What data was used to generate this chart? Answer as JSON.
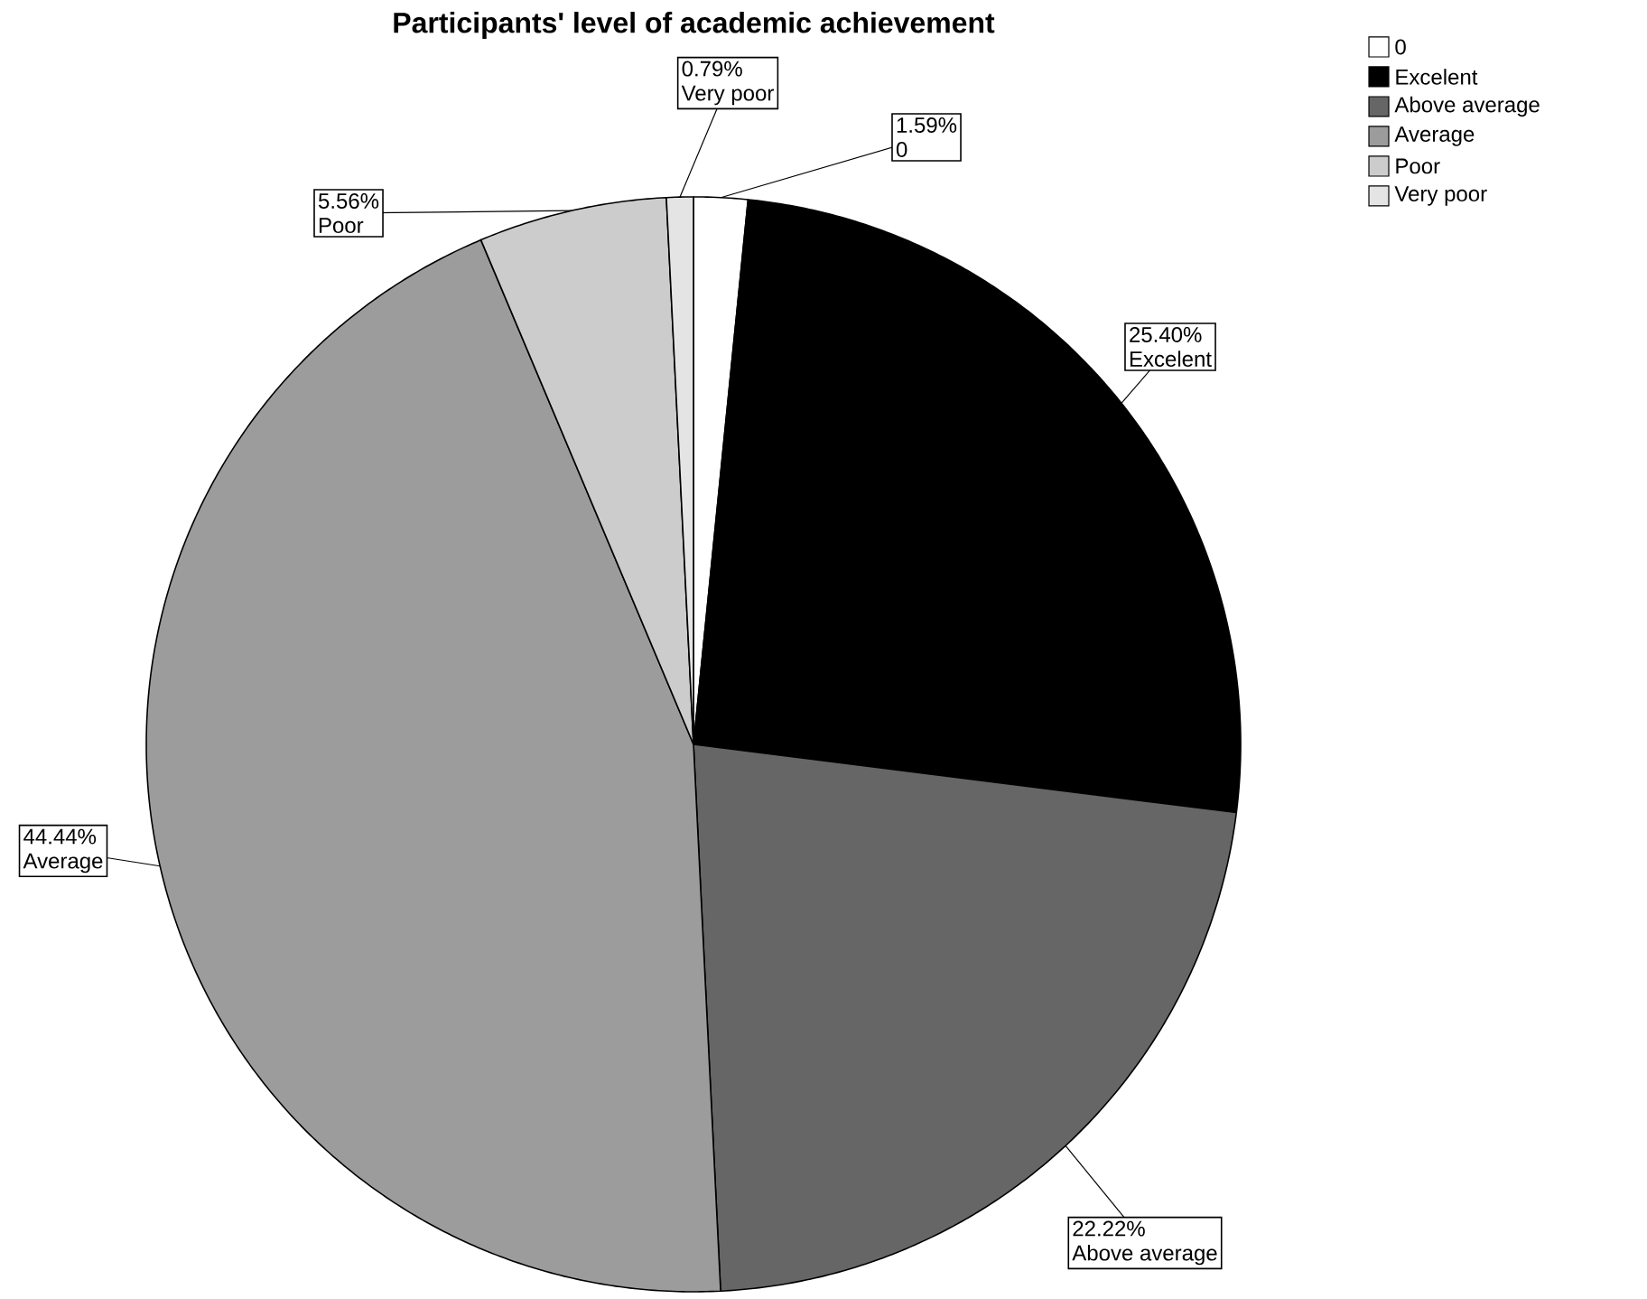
{
  "chart_data": {
    "type": "pie",
    "title": "Participants' level of academic achievement",
    "categories": [
      "0",
      "Excelent",
      "Above average",
      "Average",
      "Poor",
      "Very poor"
    ],
    "values": [
      1.59,
      25.4,
      22.22,
      44.44,
      5.56,
      0.79
    ],
    "value_labels": [
      "1.59%",
      "25.40%",
      "22.22%",
      "44.44%",
      "5.56%",
      "0.79%"
    ],
    "colors": [
      "#ffffff",
      "#000000",
      "#666666",
      "#9c9c9c",
      "#cccccc",
      "#e4e4e4"
    ],
    "legend": "top right"
  }
}
